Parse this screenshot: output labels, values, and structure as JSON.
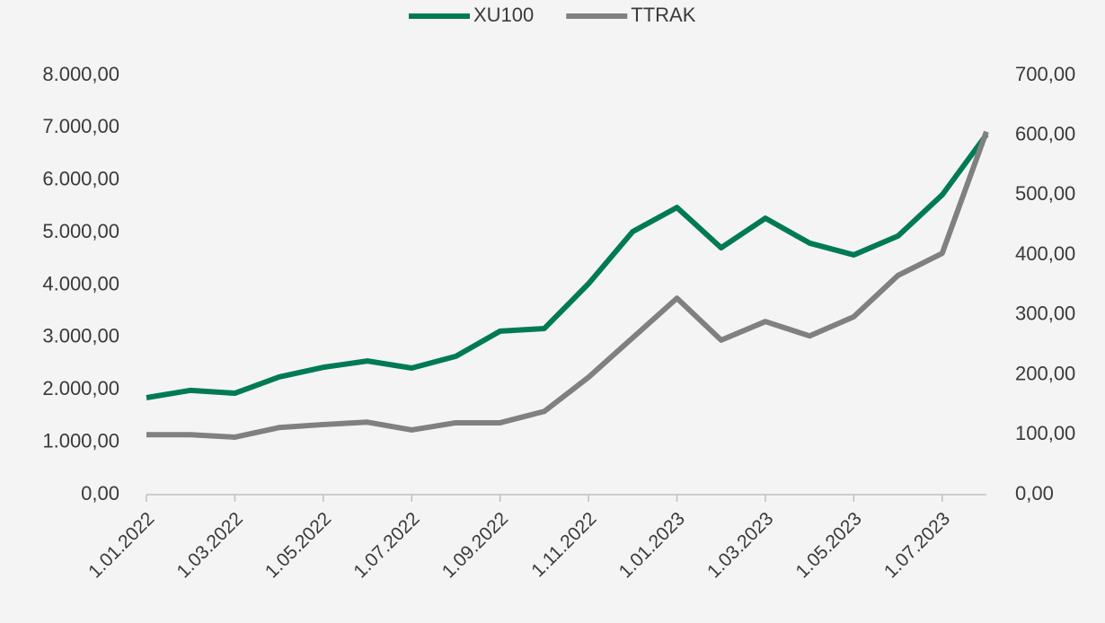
{
  "chart_data": {
    "type": "line",
    "categories": [
      "1.01.2022",
      null,
      "1.03.2022",
      null,
      "1.05.2022",
      null,
      "1.07.2022",
      null,
      "1.09.2022",
      null,
      "1.11.2022",
      null,
      "1.01.2023",
      null,
      "1.03.2023",
      null,
      "1.05.2023",
      null,
      "1.07.2023",
      null
    ],
    "series": [
      {
        "name": "XU100",
        "color": "#007a55",
        "values": [
          1850,
          1990,
          1935,
          2245,
          2430,
          2550,
          2415,
          2640,
          3120,
          3170,
          4025,
          5020,
          5480,
          4710,
          5275,
          4800,
          4575,
          4935,
          5720,
          6870
        ]
      },
      {
        "name": "TTRAK",
        "color": "#808080",
        "axis": "y2",
        "values": [
          100,
          100,
          96,
          112,
          117,
          121,
          108,
          120,
          120,
          139,
          196,
          262,
          328,
          258,
          289,
          265,
          297,
          366,
          403,
          606
        ]
      }
    ],
    "ylim": [
      0,
      8000
    ],
    "yticks": [
      {
        "value": 0,
        "label": "0,00"
      },
      {
        "value": 1000,
        "label": "1.000,00"
      },
      {
        "value": 2000,
        "label": "2.000,00"
      },
      {
        "value": 3000,
        "label": "3.000,00"
      },
      {
        "value": 4000,
        "label": "4.000,00"
      },
      {
        "value": 5000,
        "label": "5.000,00"
      },
      {
        "value": 6000,
        "label": "6.000,00"
      },
      {
        "value": 7000,
        "label": "7.000,00"
      },
      {
        "value": 8000,
        "label": "8.000,00"
      }
    ],
    "y2lim": [
      0,
      700
    ],
    "y2ticks": [
      {
        "value": 0,
        "label": "0,00"
      },
      {
        "value": 100,
        "label": "100,00"
      },
      {
        "value": 200,
        "label": "200,00"
      },
      {
        "value": 300,
        "label": "300,00"
      },
      {
        "value": 400,
        "label": "400,00"
      },
      {
        "value": 500,
        "label": "500,00"
      },
      {
        "value": 600,
        "label": "600,00"
      },
      {
        "value": 700,
        "label": "700,00"
      }
    ],
    "legend": "top"
  }
}
